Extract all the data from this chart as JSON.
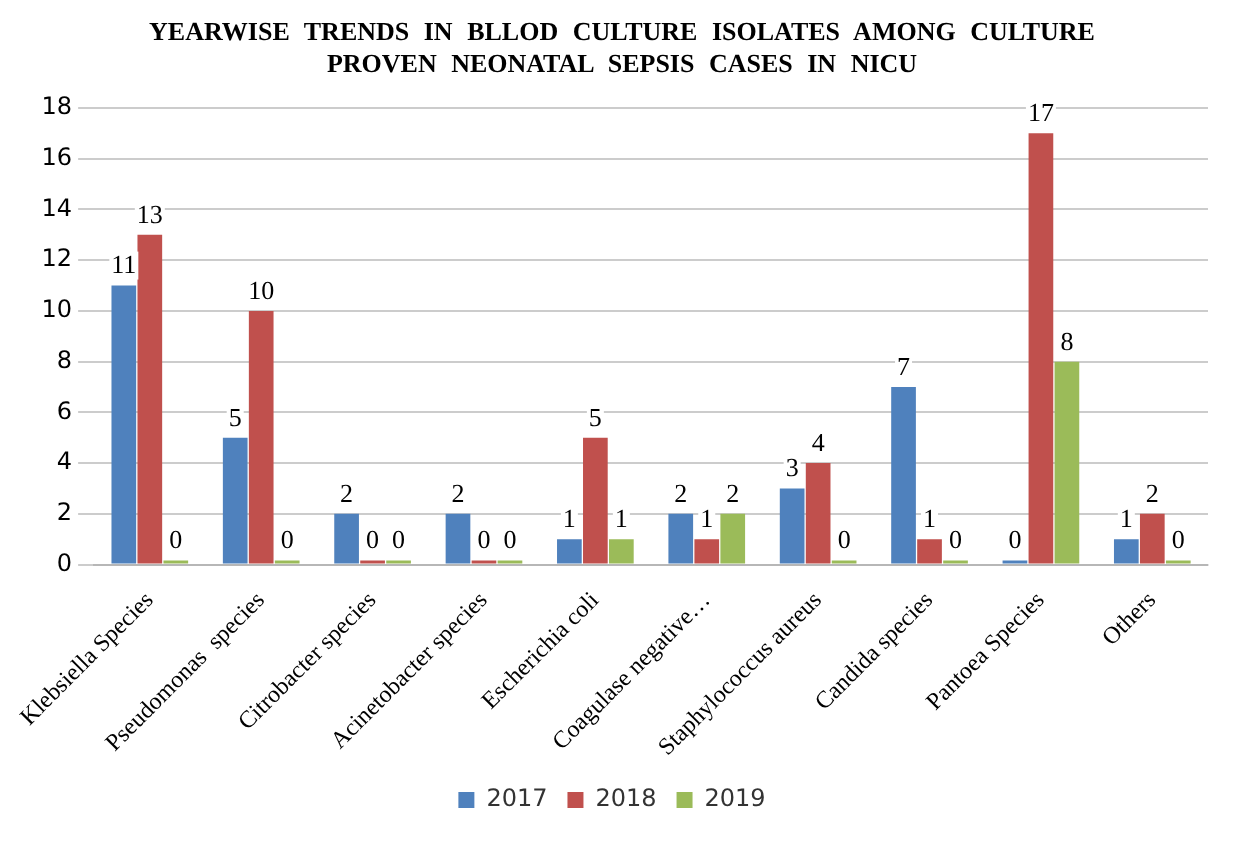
{
  "chart_data": {
    "type": "bar",
    "title": "YEARWISE TRENDS IN BLLOD CULTURE ISOLATES AMONG CULTURE PROVEN NEONATAL SEPSIS CASES IN NICU",
    "categories": [
      "Klebsiella Species",
      "Pseudomonas  species",
      "Citrobacter species",
      "Acinetobacter species",
      "Escherichia coli",
      "Coagulase negative…",
      "Staphylococcus aureus",
      "Candida species",
      "Pantoea Species",
      "Others"
    ],
    "series": [
      {
        "name": "2017",
        "color": "#4f81bd",
        "values": [
          11,
          5,
          2,
          2,
          1,
          2,
          3,
          7,
          0,
          1
        ]
      },
      {
        "name": "2018",
        "color": "#c0504d",
        "values": [
          13,
          10,
          0,
          0,
          5,
          1,
          4,
          1,
          17,
          2
        ]
      },
      {
        "name": "2019",
        "color": "#9bbb59",
        "values": [
          0,
          0,
          0,
          0,
          1,
          2,
          0,
          0,
          8,
          0
        ]
      }
    ],
    "ylim": [
      0,
      18
    ],
    "yticks": [
      0,
      2,
      4,
      6,
      8,
      10,
      12,
      14,
      16,
      18
    ],
    "grid": "y",
    "legend": "bottom",
    "data_labels": true
  }
}
